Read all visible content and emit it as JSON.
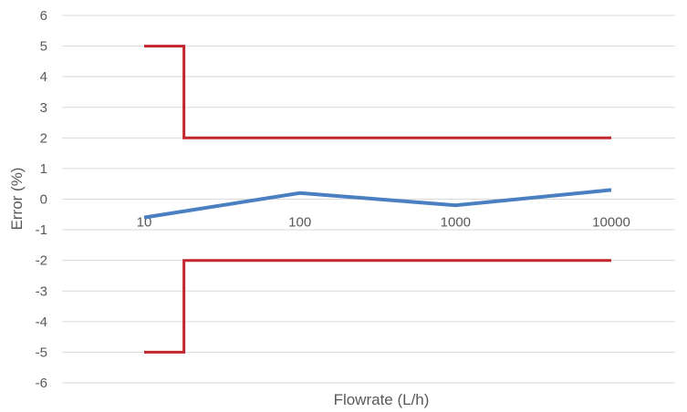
{
  "chart_data": {
    "type": "line",
    "title": "",
    "xlabel": "Flowrate (L/h)",
    "ylabel": "Error (%)",
    "x_scale": "log",
    "x_tick_labels": [
      "10",
      "100",
      "1000",
      "10000"
    ],
    "y_tick_labels": [
      "6",
      "5",
      "4",
      "3",
      "2",
      "1",
      "0",
      "-1",
      "-2",
      "-3",
      "-4",
      "-5",
      "-6"
    ],
    "ylim": [
      -6,
      6
    ],
    "grid": "horizontal",
    "legend": "none",
    "series": [
      {
        "color": "#4a7fc1",
        "points": [
          {
            "x": 10,
            "y": -0.6
          },
          {
            "x": 100,
            "y": 0.2
          },
          {
            "x": 1000,
            "y": -0.2
          },
          {
            "x": 10000,
            "y": 0.3
          }
        ]
      },
      {
        "color": "#c0262c",
        "points": [
          {
            "x": 10,
            "y": 5
          },
          {
            "x": 18,
            "y": 5
          },
          {
            "x": 18,
            "y": 2
          },
          {
            "x": 10000,
            "y": 2
          }
        ]
      },
      {
        "color": "#c0262c",
        "points": [
          {
            "x": 10,
            "y": -5
          },
          {
            "x": 18,
            "y": -5
          },
          {
            "x": 18,
            "y": -2
          },
          {
            "x": 10000,
            "y": -2
          }
        ]
      }
    ]
  }
}
